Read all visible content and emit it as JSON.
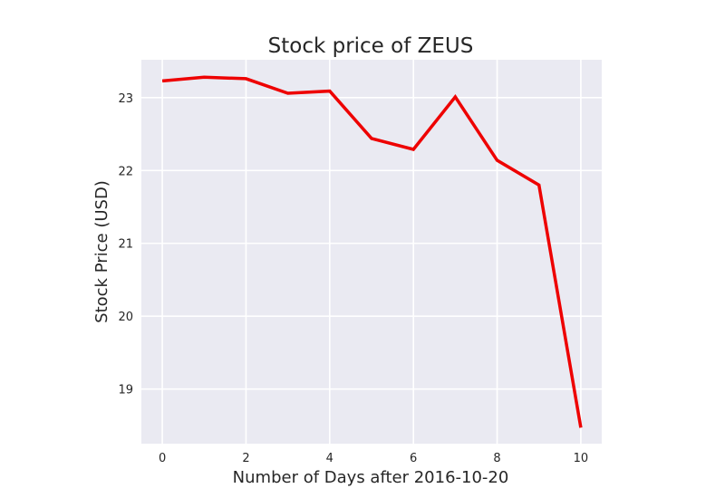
{
  "chart_data": {
    "type": "line",
    "title": "Stock price of ZEUS",
    "xlabel": "Number of Days after 2016-10-20",
    "ylabel": "Stock Price (USD)",
    "x": [
      0,
      1,
      2,
      3,
      4,
      5,
      6,
      7,
      8,
      9,
      10
    ],
    "series": [
      {
        "values": [
          23.23,
          23.28,
          23.26,
          23.06,
          23.09,
          22.44,
          22.29,
          23.01,
          22.14,
          21.8,
          18.47
        ]
      }
    ],
    "xticks": [
      "0",
      "2",
      "4",
      "6",
      "8",
      "10"
    ],
    "yticks": [
      "19",
      "20",
      "21",
      "22",
      "23"
    ],
    "xlim": [
      -0.5,
      10.5
    ],
    "ylim": [
      18.25,
      23.52
    ],
    "grid": true,
    "colors": {
      "line": "#ee0000",
      "plot_background": "#eaeaf2",
      "grid": "#ffffff"
    }
  }
}
